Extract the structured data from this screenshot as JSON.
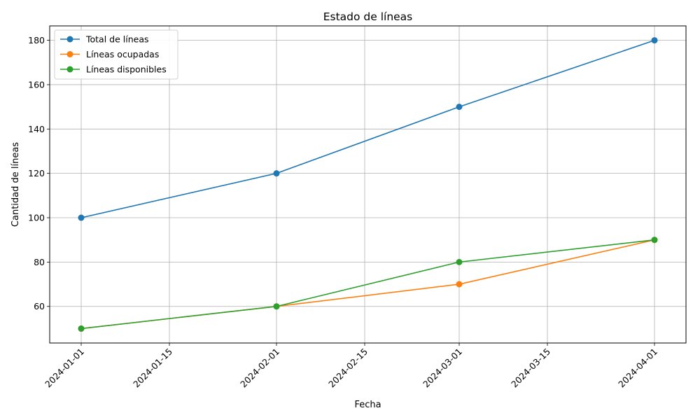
{
  "chart_data": {
    "type": "line",
    "title": "Estado de líneas",
    "xlabel": "Fecha",
    "ylabel": "Cantidad de líneas",
    "x": [
      "2024-01-01",
      "2024-02-01",
      "2024-03-01",
      "2024-04-01"
    ],
    "x_ticks": [
      "2024-01-01",
      "2024-01-15",
      "2024-02-01",
      "2024-02-15",
      "2024-03-01",
      "2024-03-15",
      "2024-04-01"
    ],
    "y_ticks": [
      60,
      80,
      100,
      120,
      140,
      160,
      180
    ],
    "xlim": [
      "2023-12-27",
      "2024-04-06"
    ],
    "ylim": [
      43.5,
      186.5
    ],
    "grid": true,
    "legend_position": "top-left",
    "series": [
      {
        "name": "Total de líneas",
        "values": [
          100,
          120,
          150,
          180
        ],
        "color": "#1f77b4",
        "marker": "circle"
      },
      {
        "name": "Líneas ocupadas",
        "values": [
          50,
          60,
          70,
          90
        ],
        "color": "#ff7f0e",
        "marker": "circle"
      },
      {
        "name": "Líneas disponibles",
        "values": [
          50,
          60,
          80,
          90
        ],
        "color": "#2ca02c",
        "marker": "circle"
      }
    ]
  }
}
